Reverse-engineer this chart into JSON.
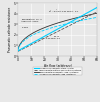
{
  "xlabel": "Air flow (arbitrary)",
  "ylabel": "Pneumatic cathode resistance",
  "xlim": [
    0,
    60
  ],
  "ylim": [
    0,
    5
  ],
  "xticks": [
    0,
    10,
    20,
    30,
    40,
    50,
    60
  ],
  "yticks": [
    0,
    1,
    2,
    3,
    4,
    5
  ],
  "bg_color": "#e8e8e8",
  "grid_color": "white",
  "legend": [
    {
      "label": "Linearized pneumatic stack resistor",
      "color": "#00cfff",
      "lw": 0.8,
      "ls": "-"
    },
    {
      "label": "Experimental battery pneumatic resistance",
      "color": "#555555",
      "lw": 0.6,
      "ls": "--"
    },
    {
      "label": "Experimental pneumatic load resistance",
      "color": "#333333",
      "lw": 0.6,
      "ls": "-"
    },
    {
      "label": "Linearized pneumatic load resistance",
      "color": "#00cfff",
      "lw": 0.6,
      "ls": "--"
    }
  ]
}
